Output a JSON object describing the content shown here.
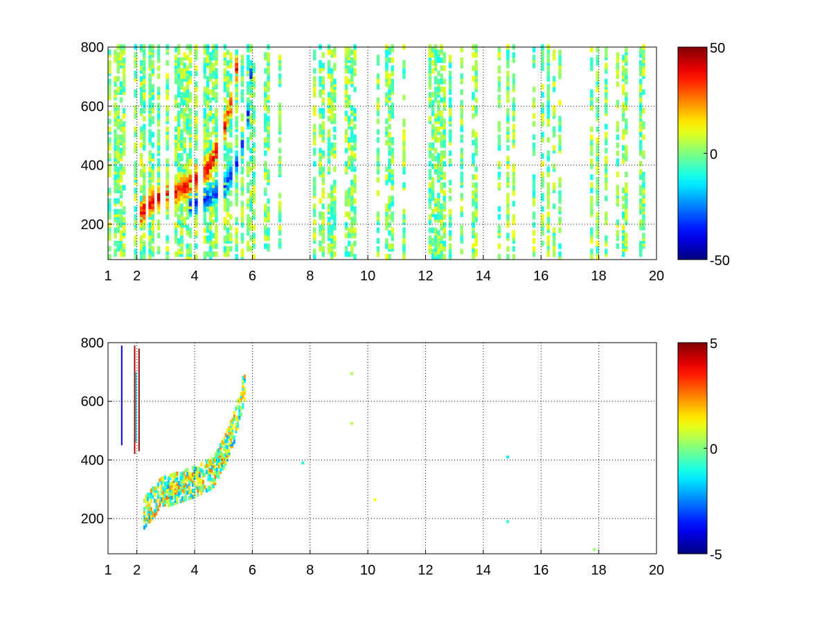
{
  "chart_data": [
    {
      "type": "heatmap",
      "panel": "top",
      "xlim": [
        1,
        20
      ],
      "ylim": [
        80,
        800
      ],
      "xticks": [
        1,
        2,
        4,
        6,
        8,
        10,
        12,
        14,
        16,
        18,
        20
      ],
      "yticks": [
        200,
        400,
        600,
        800
      ],
      "grid": true,
      "colorbar": {
        "min": -50,
        "max": 50,
        "ticks": [
          50,
          0,
          -50
        ],
        "colormap": "jet"
      },
      "features": [
        {
          "description_kind": "positive ridge",
          "points": [
            [
              2.0,
              220
            ],
            [
              2.6,
              280
            ],
            [
              3.2,
              300
            ],
            [
              3.8,
              330
            ],
            [
              4.4,
              380
            ],
            [
              4.9,
              480
            ],
            [
              5.2,
              600
            ],
            [
              5.4,
              720
            ]
          ],
          "value": 40
        },
        {
          "description_kind": "negative ridge",
          "points": [
            [
              3.8,
              260
            ],
            [
              4.4,
              280
            ],
            [
              5.0,
              320
            ],
            [
              5.5,
              420
            ],
            [
              5.8,
              560
            ],
            [
              5.9,
              700
            ]
          ],
          "value": -35
        }
      ],
      "background_range": [
        -12,
        12
      ],
      "background_x_range": [
        6,
        20
      ]
    },
    {
      "type": "heatmap",
      "panel": "bottom",
      "xlim": [
        1,
        20
      ],
      "ylim": [
        80,
        800
      ],
      "xticks": [
        1,
        2,
        4,
        6,
        8,
        10,
        12,
        14,
        16,
        18,
        20
      ],
      "yticks": [
        200,
        400,
        600,
        800
      ],
      "grid": true,
      "colorbar": {
        "min": -5,
        "max": 5,
        "ticks": [
          5,
          0,
          -5
        ],
        "colormap": "jet"
      },
      "features": [
        {
          "description_kind": "sparse ridge",
          "points": [
            [
              2.2,
              210
            ],
            [
              2.8,
              280
            ],
            [
              3.4,
              300
            ],
            [
              4.0,
              320
            ],
            [
              4.6,
              350
            ],
            [
              5.0,
              420
            ],
            [
              5.4,
              520
            ],
            [
              5.7,
              650
            ]
          ],
          "value": 1
        }
      ],
      "isolated_points": [
        [
          7.7,
          385
        ],
        [
          9.4,
          520
        ],
        [
          10.2,
          260
        ],
        [
          14.8,
          405
        ],
        [
          14.8,
          185
        ],
        [
          17.8,
          90
        ],
        [
          9.4,
          690
        ]
      ]
    }
  ]
}
